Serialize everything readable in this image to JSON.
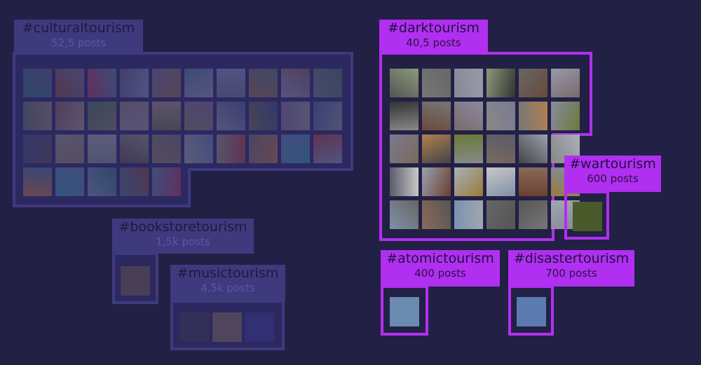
{
  "colors": {
    "background": "#232045",
    "dim_fill": "#3f3a7e",
    "highlight": "#b12ff0"
  },
  "groups": {
    "cultural": {
      "tag": "#culturaltourism",
      "count": "52,5 posts"
    },
    "bookstore": {
      "tag": "#bookstoretourism",
      "count": "1,5k posts"
    },
    "music": {
      "tag": "#musictourism",
      "count": "4,5k posts"
    },
    "dark": {
      "tag": "#darktourism",
      "count": "40,5 posts"
    },
    "war": {
      "tag": "#wartourism",
      "count": "600 posts"
    },
    "atomic": {
      "tag": "#atomictourism",
      "count": "400  posts"
    },
    "disaster": {
      "tag": "#disastertourism",
      "count": "700 posts"
    }
  }
}
